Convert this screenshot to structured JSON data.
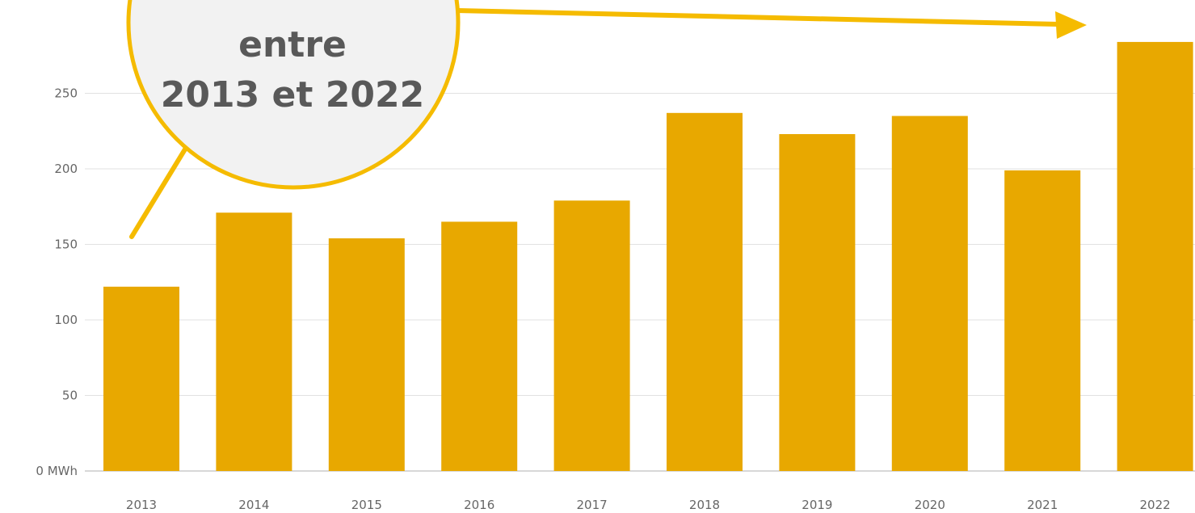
{
  "chart_data": {
    "type": "bar",
    "categories": [
      "2013",
      "2014",
      "2015",
      "2016",
      "2017",
      "2018",
      "2019",
      "2020",
      "2021",
      "2022"
    ],
    "values": [
      122,
      171,
      154,
      165,
      179,
      237,
      223,
      235,
      199,
      284
    ],
    "y_ticks": [
      {
        "value": 0,
        "label": "0 MWh"
      },
      {
        "value": 50,
        "label": "50"
      },
      {
        "value": 100,
        "label": "100"
      },
      {
        "value": 150,
        "label": "150"
      },
      {
        "value": 200,
        "label": "200"
      },
      {
        "value": 250,
        "label": "250"
      }
    ],
    "ylim": [
      0,
      300
    ],
    "grid": true,
    "bar_color": "#e8a800",
    "annotation": {
      "lines": [
        "entre",
        "2013 et 2022"
      ],
      "fill_color": "#f2f2f2",
      "border_color": "#f5bb00",
      "arrow_color": "#f5bb00"
    }
  }
}
